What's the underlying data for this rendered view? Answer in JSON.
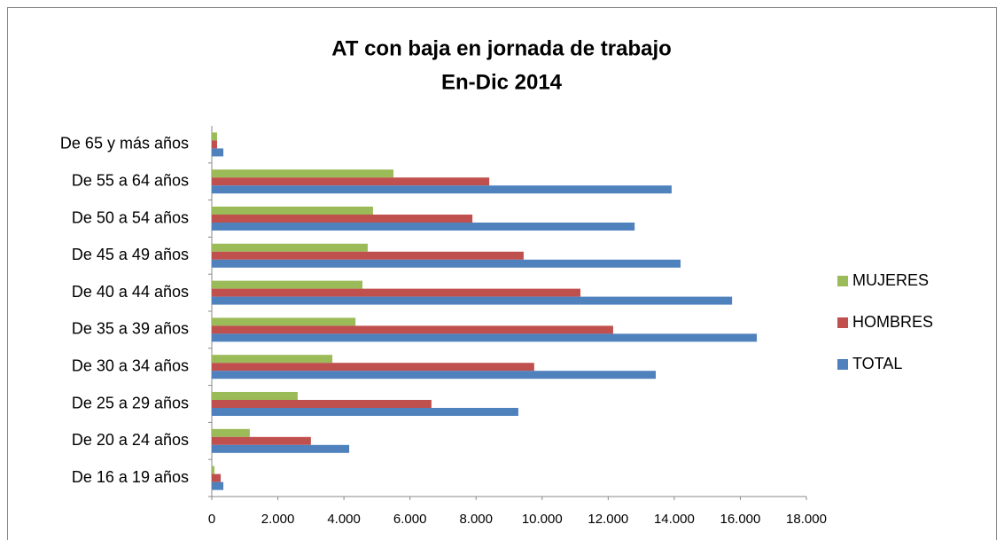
{
  "chart_data": {
    "type": "bar",
    "orientation": "horizontal",
    "title": "AT con baja en jornada de trabajo",
    "subtitle": "En-Dic 2014",
    "categories": [
      "De 16 a 19 años",
      "De 20 a 24 años",
      "De 25 a 29 años",
      "De 30 a 34 años",
      "De 35 a 39 años",
      "De 40 a 44 años",
      "De 45 a 49 años",
      "De 50 a 54 años",
      "De 55 a 64 años",
      "De 65 y más años"
    ],
    "series": [
      {
        "name": "MUJERES",
        "color": "#9bbb59",
        "values": [
          80,
          1150,
          2600,
          3650,
          4350,
          4560,
          4720,
          4880,
          5500,
          160
        ]
      },
      {
        "name": "HOMBRES",
        "color": "#c0504d",
        "values": [
          270,
          3000,
          6650,
          9760,
          12150,
          11160,
          9440,
          7890,
          8400,
          160
        ]
      },
      {
        "name": "TOTAL",
        "color": "#4f81bd",
        "values": [
          350,
          4160,
          9280,
          13440,
          16500,
          15750,
          14190,
          12800,
          13920,
          350
        ]
      }
    ],
    "xlim": [
      0,
      18000
    ],
    "xticks": [
      0,
      {
        "value": 2000,
        "label": "2.000"
      },
      {
        "value": 4000,
        "label": "4.000"
      },
      {
        "value": 6000,
        "label": "6.000"
      },
      {
        "value": 8000,
        "label": "8.000"
      },
      {
        "value": 10000,
        "label": "10.000"
      },
      {
        "value": 12000,
        "label": "12.000"
      },
      {
        "value": 14000,
        "label": "14.000"
      },
      {
        "value": 16000,
        "label": "16.000"
      },
      {
        "value": 18000,
        "label": "18.000"
      }
    ],
    "legend": "right",
    "grid": false
  }
}
